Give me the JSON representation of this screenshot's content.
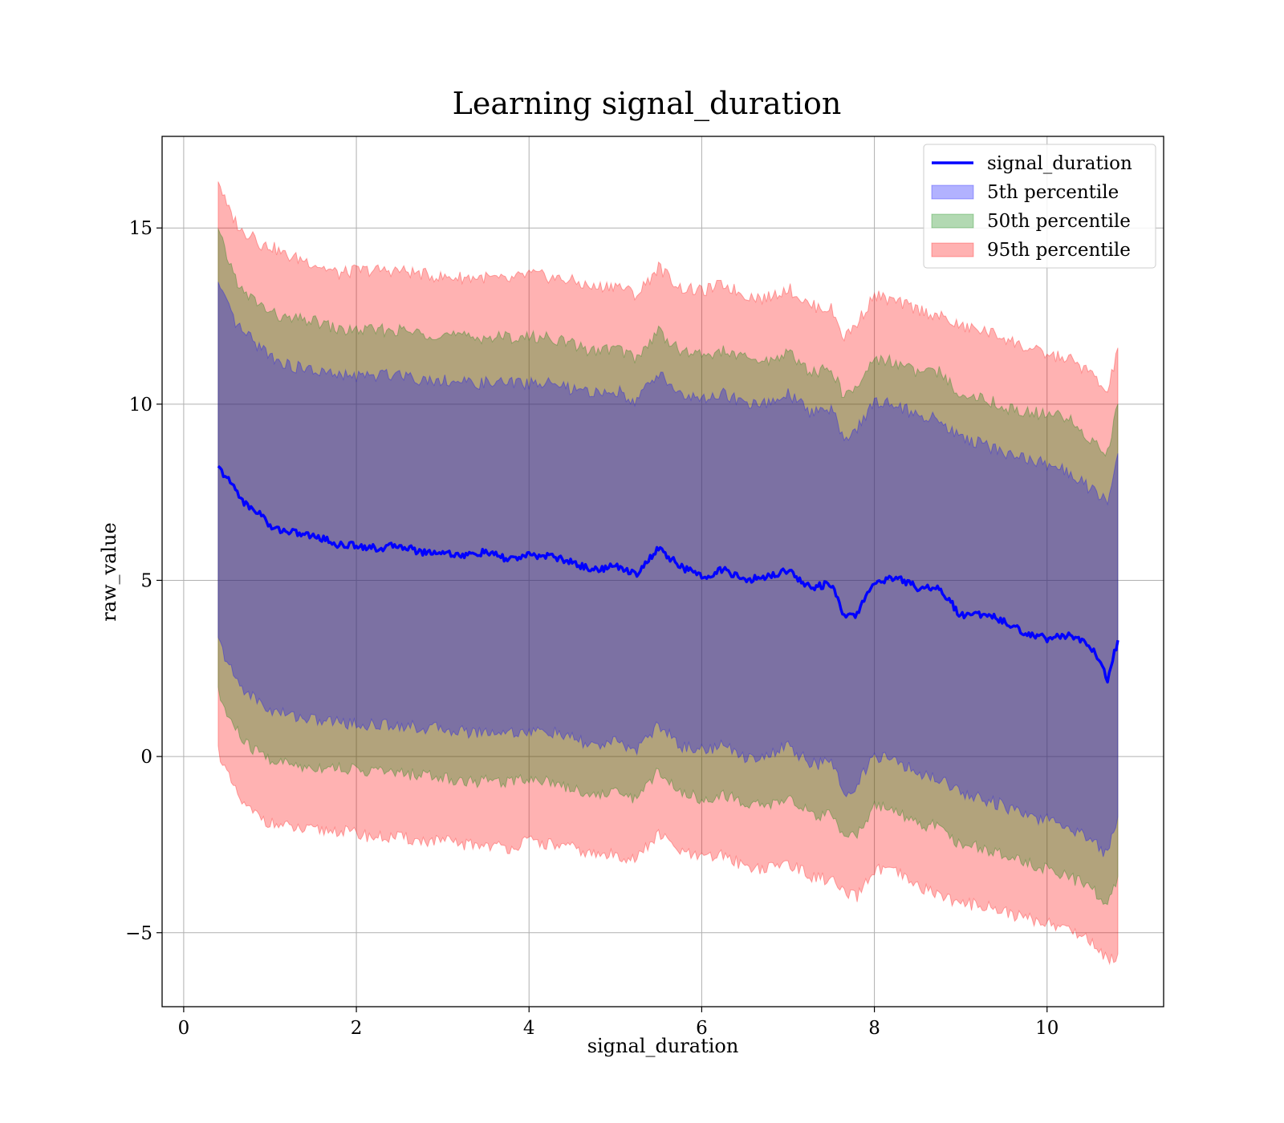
{
  "chart_data": {
    "type": "area",
    "title": "Learning signal_duration",
    "xlabel": "signal_duration",
    "ylabel": "raw_value",
    "xlim": [
      -0.25,
      11.35
    ],
    "ylim": [
      -7.1,
      17.6
    ],
    "xticks": [
      0,
      2,
      4,
      6,
      8,
      10
    ],
    "xtick_labels": [
      "0",
      "2",
      "4",
      "6",
      "8",
      "10"
    ],
    "yticks": [
      -5,
      0,
      5,
      10,
      15
    ],
    "ytick_labels": [
      "−5",
      "0",
      "5",
      "10",
      "15"
    ],
    "grid": true,
    "legend_position": "top-right",
    "legend": [
      {
        "label": "signal_duration",
        "kind": "line",
        "color": "#0000ff"
      },
      {
        "label": "5th percentile",
        "kind": "patch",
        "color": "#0000ff"
      },
      {
        "label": "50th percentile",
        "kind": "patch",
        "color": "#008000"
      },
      {
        "label": "95th percentile",
        "kind": "patch",
        "color": "#ff0000"
      }
    ],
    "x": [
      0.4,
      0.5,
      0.6,
      0.7,
      0.8,
      0.9,
      1.0,
      1.2,
      1.4,
      1.6,
      1.8,
      2.0,
      2.25,
      2.5,
      2.75,
      3.0,
      3.25,
      3.5,
      3.75,
      4.0,
      4.25,
      4.5,
      4.75,
      5.0,
      5.25,
      5.5,
      5.75,
      6.0,
      6.25,
      6.5,
      6.75,
      7.0,
      7.25,
      7.5,
      7.65,
      7.8,
      8.0,
      8.25,
      8.5,
      8.75,
      9.0,
      9.25,
      9.5,
      9.75,
      10.0,
      10.25,
      10.5,
      10.7,
      10.82
    ],
    "series": [
      {
        "name": "signal_duration",
        "values": [
          8.2,
          7.9,
          7.6,
          7.2,
          7.0,
          6.9,
          6.5,
          6.4,
          6.3,
          6.2,
          6.0,
          6.0,
          5.9,
          6.0,
          5.8,
          5.8,
          5.7,
          5.8,
          5.6,
          5.7,
          5.7,
          5.5,
          5.3,
          5.4,
          5.2,
          5.9,
          5.4,
          5.1,
          5.3,
          5.0,
          5.1,
          5.3,
          4.8,
          4.9,
          3.95,
          4.05,
          4.95,
          5.1,
          4.8,
          4.8,
          4.0,
          4.05,
          3.85,
          3.5,
          3.35,
          3.45,
          3.15,
          2.2,
          3.3
        ]
      }
    ],
    "bands": [
      {
        "name": "95th percentile",
        "color": "#ff0000",
        "upper": [
          16.4,
          15.6,
          15.2,
          14.8,
          14.9,
          14.5,
          14.5,
          14.2,
          14.1,
          13.9,
          13.7,
          13.8,
          13.8,
          13.8,
          13.7,
          13.6,
          13.6,
          13.6,
          13.5,
          13.7,
          13.6,
          13.5,
          13.3,
          13.4,
          13.1,
          13.9,
          13.3,
          13.2,
          13.4,
          13.1,
          13.0,
          13.3,
          12.8,
          12.7,
          11.9,
          12.3,
          13.1,
          12.9,
          12.7,
          12.5,
          12.2,
          12.1,
          11.9,
          11.6,
          11.4,
          11.3,
          10.9,
          10.3,
          11.6
        ],
        "lower": [
          0.2,
          -0.5,
          -1.0,
          -1.4,
          -1.6,
          -1.7,
          -1.9,
          -2.0,
          -2.1,
          -2.1,
          -2.1,
          -2.2,
          -2.3,
          -2.3,
          -2.4,
          -2.4,
          -2.5,
          -2.5,
          -2.6,
          -2.4,
          -2.5,
          -2.6,
          -2.8,
          -2.8,
          -2.9,
          -2.2,
          -2.7,
          -2.9,
          -2.8,
          -3.1,
          -3.2,
          -3.0,
          -3.4,
          -3.5,
          -3.9,
          -4.0,
          -3.2,
          -3.3,
          -3.7,
          -3.9,
          -4.2,
          -4.2,
          -4.4,
          -4.6,
          -4.7,
          -4.9,
          -5.2,
          -5.8,
          -5.6
        ]
      },
      {
        "name": "50th percentile",
        "color": "#008000",
        "upper": [
          14.9,
          14.2,
          13.6,
          13.1,
          13.0,
          12.8,
          12.6,
          12.4,
          12.4,
          12.3,
          12.1,
          12.1,
          12.1,
          12.1,
          12.0,
          12.0,
          11.9,
          11.9,
          11.9,
          11.9,
          11.9,
          11.7,
          11.5,
          11.6,
          11.3,
          12.1,
          11.5,
          11.4,
          11.5,
          11.3,
          11.2,
          11.5,
          10.9,
          11.0,
          10.2,
          10.5,
          11.3,
          11.2,
          10.9,
          10.9,
          10.3,
          10.2,
          9.9,
          9.8,
          9.7,
          9.6,
          9.0,
          8.6,
          10.0
        ],
        "lower": [
          1.8,
          1.2,
          0.8,
          0.4,
          0.2,
          0.1,
          -0.1,
          -0.2,
          -0.3,
          -0.3,
          -0.3,
          -0.4,
          -0.4,
          -0.5,
          -0.5,
          -0.6,
          -0.7,
          -0.7,
          -0.7,
          -0.6,
          -0.7,
          -0.9,
          -1.1,
          -1.0,
          -1.2,
          -0.4,
          -1.0,
          -1.2,
          -1.1,
          -1.3,
          -1.4,
          -1.2,
          -1.6,
          -1.7,
          -2.4,
          -2.2,
          -1.4,
          -1.6,
          -1.9,
          -2.0,
          -2.5,
          -2.6,
          -2.8,
          -3.0,
          -3.2,
          -3.4,
          -3.7,
          -4.2,
          -3.4
        ]
      },
      {
        "name": "5th percentile",
        "color": "#0000ff",
        "upper": [
          13.4,
          12.8,
          12.3,
          12.0,
          11.8,
          11.6,
          11.4,
          11.1,
          11.0,
          10.9,
          10.8,
          10.8,
          10.8,
          10.9,
          10.7,
          10.7,
          10.6,
          10.6,
          10.6,
          10.6,
          10.6,
          10.4,
          10.3,
          10.4,
          10.1,
          10.9,
          10.3,
          10.1,
          10.3,
          10.0,
          10.0,
          10.3,
          9.8,
          9.9,
          9.0,
          9.3,
          10.1,
          10.0,
          9.7,
          9.6,
          9.0,
          8.9,
          8.6,
          8.5,
          8.3,
          8.1,
          7.6,
          7.2,
          8.6
        ],
        "lower": [
          3.3,
          2.7,
          2.2,
          1.9,
          1.7,
          1.5,
          1.3,
          1.2,
          1.1,
          1.0,
          1.0,
          0.9,
          0.9,
          0.9,
          0.8,
          0.8,
          0.7,
          0.7,
          0.7,
          0.7,
          0.7,
          0.5,
          0.3,
          0.4,
          0.2,
          0.9,
          0.3,
          0.2,
          0.3,
          0.0,
          0.0,
          0.3,
          -0.2,
          -0.2,
          -1.0,
          -0.8,
          0.0,
          -0.1,
          -0.5,
          -0.6,
          -1.0,
          -1.2,
          -1.4,
          -1.7,
          -1.8,
          -2.0,
          -2.3,
          -2.8,
          -1.7
        ]
      }
    ]
  }
}
